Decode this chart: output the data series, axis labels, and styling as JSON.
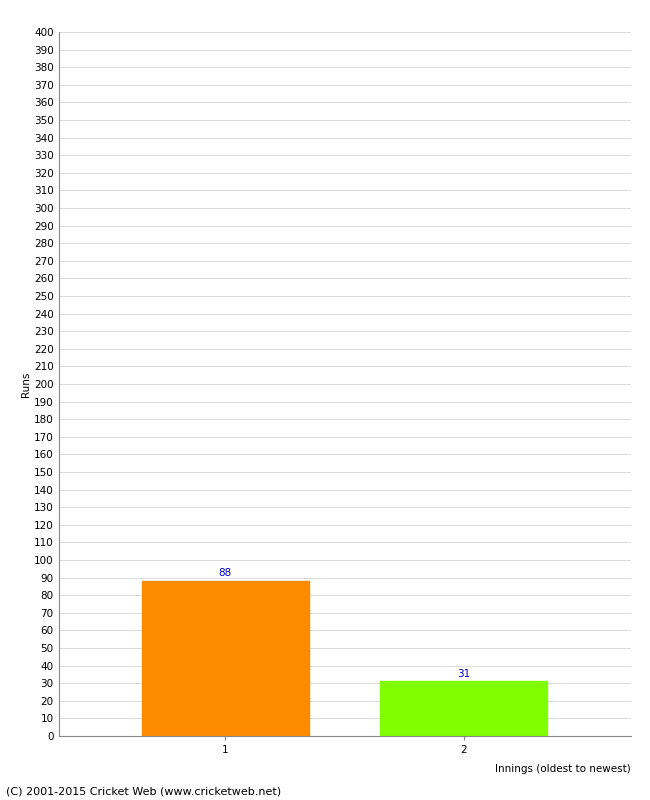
{
  "categories": [
    "1",
    "2"
  ],
  "values": [
    88,
    31
  ],
  "bar_colors": [
    "#ff8c00",
    "#7fff00"
  ],
  "xlabel": "Innings (oldest to newest)",
  "ylabel": "Runs",
  "ylim": [
    0,
    400
  ],
  "ytick_step": 10,
  "bar_label_color": "#0000cc",
  "bar_label_fontsize": 7.5,
  "grid_color": "#cccccc",
  "background_color": "#ffffff",
  "footer_text": "(C) 2001-2015 Cricket Web (www.cricketweb.net)",
  "footer_fontsize": 8,
  "axis_label_fontsize": 7.5,
  "tick_label_fontsize": 7.5
}
